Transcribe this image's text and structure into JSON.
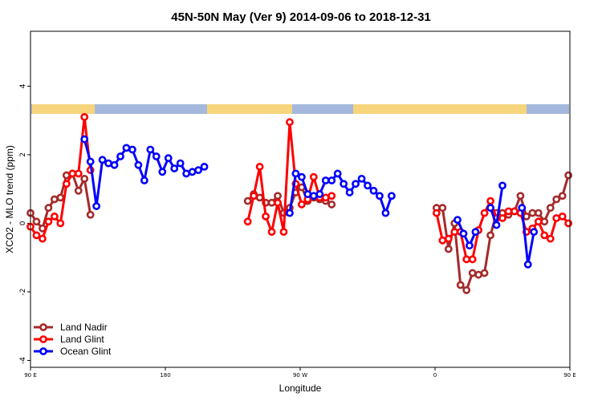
{
  "chart_data": {
    "type": "line",
    "title": "45N-50N May (Ver 9)   2014-09-06 to 2018-12-31",
    "xlabel": "Longitude",
    "ylabel": "XCO2 - MLO trend (ppm)",
    "xlim": [
      90,
      450
    ],
    "ylim": [
      -4.2,
      5.6
    ],
    "x_ticks": [
      {
        "value": 90,
        "label": "90 E"
      },
      {
        "value": 180,
        "label": "180"
      },
      {
        "value": 270,
        "label": "90 W"
      },
      {
        "value": 360,
        "label": "0"
      },
      {
        "value": 450,
        "label": "90 E"
      },
      {
        "value": 540,
        "label": "180"
      }
    ],
    "y_ticks": [
      {
        "value": -4,
        "label": "-4"
      },
      {
        "value": -2,
        "label": "-2"
      },
      {
        "value": 0,
        "label": "0"
      },
      {
        "value": 2,
        "label": "2"
      },
      {
        "value": 4,
        "label": "4"
      }
    ],
    "land_band": {
      "colors": {
        "land": "#f7d57c",
        "ocean": "#a3b8dc"
      }
    },
    "legend_position": "bottom-left",
    "series": [
      {
        "name": "Land Nadir",
        "color": "#a52a2a",
        "segments": [
          [
            [
              90,
              0.3
            ],
            [
              94,
              0.05
            ],
            [
              98,
              -0.15
            ],
            [
              102,
              0.45
            ],
            [
              106,
              0.7
            ],
            [
              110,
              0.75
            ],
            [
              114,
              1.4
            ],
            [
              118,
              1.45
            ],
            [
              122,
              0.95
            ],
            [
              126,
              1.3
            ],
            [
              130,
              0.25
            ]
          ],
          [
            [
              235,
              0.65
            ],
            [
              239,
              0.85
            ],
            [
              243,
              0.75
            ],
            [
              247,
              0.6
            ],
            [
              251,
              0.6
            ],
            [
              255,
              0.8
            ],
            [
              259,
              0.3
            ],
            [
              263,
              0.45
            ],
            [
              267,
              0.9
            ],
            [
              271,
              1.05
            ],
            [
              275,
              0.65
            ],
            [
              279,
              0.75
            ],
            [
              283,
              0.7
            ],
            [
              287,
              0.65
            ],
            [
              291,
              0.55
            ]
          ],
          [
            [
              361,
              0.45
            ],
            [
              365,
              0.45
            ],
            [
              369,
              -0.75
            ],
            [
              373,
              0.0
            ],
            [
              377,
              -1.8
            ],
            [
              381,
              -1.95
            ],
            [
              385,
              -1.45
            ],
            [
              389,
              -1.5
            ],
            [
              393,
              -1.45
            ],
            [
              397,
              -0.35
            ],
            [
              401,
              0.3
            ],
            [
              405,
              0.3
            ],
            [
              409,
              0.25
            ],
            [
              413,
              0.35
            ],
            [
              417,
              0.8
            ],
            [
              421,
              0.2
            ],
            [
              425,
              0.3
            ],
            [
              429,
              0.3
            ],
            [
              433,
              0.05
            ],
            [
              437,
              0.45
            ],
            [
              441,
              0.7
            ],
            [
              445,
              0.8
            ],
            [
              449,
              1.4
            ],
            [
              453,
              1.3
            ],
            [
              457,
              0.9
            ],
            [
              461,
              1.3
            ],
            [
              465,
              0.25
            ]
          ]
        ]
      },
      {
        "name": "Land Glint",
        "color": "#ff0000",
        "segments": [
          [
            [
              90,
              -0.1
            ],
            [
              94,
              -0.35
            ],
            [
              98,
              -0.45
            ],
            [
              102,
              0.05
            ],
            [
              106,
              0.2
            ],
            [
              110,
              0.0
            ],
            [
              114,
              1.15
            ],
            [
              118,
              1.45
            ],
            [
              122,
              1.45
            ],
            [
              126,
              3.1
            ],
            [
              130,
              1.55
            ]
          ],
          [
            [
              235,
              0.05
            ],
            [
              239,
              0.8
            ],
            [
              243,
              1.65
            ],
            [
              247,
              0.2
            ],
            [
              251,
              -0.25
            ],
            [
              255,
              0.6
            ],
            [
              259,
              -0.25
            ],
            [
              263,
              2.95
            ],
            [
              267,
              1.15
            ],
            [
              271,
              0.55
            ],
            [
              275,
              0.7
            ],
            [
              279,
              1.35
            ],
            [
              283,
              0.75
            ],
            [
              287,
              0.75
            ],
            [
              291,
              0.8
            ]
          ],
          [
            [
              361,
              0.3
            ],
            [
              365,
              -0.5
            ],
            [
              369,
              -0.45
            ],
            [
              373,
              -0.25
            ],
            [
              377,
              -0.25
            ],
            [
              381,
              -1.05
            ],
            [
              385,
              -1.05
            ],
            [
              389,
              -0.2
            ],
            [
              393,
              0.3
            ],
            [
              397,
              0.65
            ],
            [
              401,
              0.15
            ],
            [
              405,
              0.15
            ],
            [
              409,
              0.35
            ],
            [
              413,
              0.35
            ],
            [
              417,
              0.3
            ],
            [
              421,
              -0.25
            ],
            [
              425,
              -0.15
            ],
            [
              429,
              0.05
            ],
            [
              433,
              -0.35
            ],
            [
              437,
              -0.45
            ],
            [
              441,
              0.15
            ],
            [
              445,
              0.2
            ],
            [
              449,
              0.0
            ],
            [
              453,
              1.15
            ],
            [
              457,
              1.45
            ],
            [
              461,
              1.45
            ],
            [
              465,
              3.1
            ],
            [
              469,
              1.55
            ]
          ]
        ]
      },
      {
        "name": "Ocean Glint",
        "color": "#0000ff",
        "segments": [
          [
            [
              126,
              2.45
            ],
            [
              130,
              1.8
            ],
            [
              134,
              0.5
            ],
            [
              138,
              1.85
            ],
            [
              142,
              1.75
            ],
            [
              146,
              1.7
            ],
            [
              150,
              1.95
            ],
            [
              154,
              2.2
            ],
            [
              158,
              2.15
            ],
            [
              162,
              1.7
            ],
            [
              166,
              1.25
            ],
            [
              170,
              2.15
            ],
            [
              174,
              1.95
            ],
            [
              178,
              1.5
            ],
            [
              182,
              1.9
            ],
            [
              186,
              1.6
            ],
            [
              190,
              1.75
            ],
            [
              194,
              1.45
            ],
            [
              198,
              1.5
            ],
            [
              202,
              1.55
            ],
            [
              206,
              1.65
            ]
          ],
          [
            [
              263,
              0.3
            ],
            [
              267,
              1.45
            ],
            [
              271,
              1.35
            ],
            [
              275,
              0.85
            ],
            [
              279,
              0.8
            ],
            [
              283,
              0.85
            ],
            [
              287,
              1.25
            ],
            [
              291,
              1.25
            ],
            [
              295,
              1.45
            ],
            [
              299,
              1.15
            ],
            [
              303,
              0.9
            ],
            [
              307,
              1.15
            ],
            [
              311,
              1.3
            ],
            [
              315,
              1.1
            ],
            [
              319,
              0.95
            ],
            [
              323,
              0.8
            ],
            [
              327,
              0.3
            ],
            [
              331,
              0.8
            ]
          ],
          [
            [
              375,
              0.1
            ],
            [
              379,
              -0.3
            ],
            [
              383,
              -0.65
            ],
            [
              387,
              -0.25
            ]
          ],
          [
            [
              397,
              0.45
            ],
            [
              401,
              -0.05
            ],
            [
              405,
              1.1
            ]
          ],
          [
            [
              418,
              0.45
            ],
            [
              422,
              -1.2
            ],
            [
              426,
              -0.25
            ]
          ],
          [
            [
              465,
              2.45
            ],
            [
              469,
              1.8
            ],
            [
              473,
              0.5
            ],
            [
              477,
              1.85
            ],
            [
              481,
              1.75
            ],
            [
              485,
              1.7
            ],
            [
              489,
              1.95
            ],
            [
              493,
              2.2
            ],
            [
              497,
              2.15
            ]
          ]
        ]
      }
    ]
  }
}
